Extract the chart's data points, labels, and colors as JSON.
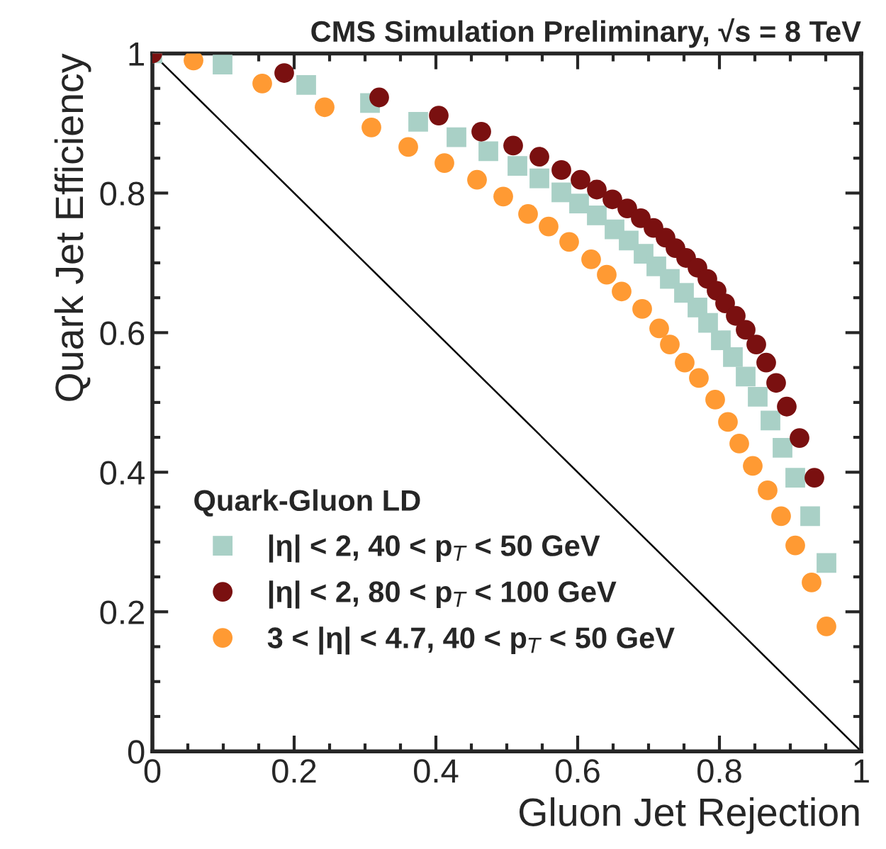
{
  "chart_data": {
    "type": "scatter",
    "title": "CMS Simulation Preliminary, √s = 8 TeV",
    "xlabel": "Gluon Jet Rejection",
    "ylabel": "Quark Jet Efficiency",
    "legend_title": "Quark-Gluon LD",
    "legend": "bottom left",
    "grid": false,
    "xlim": [
      0,
      1
    ],
    "ylim": [
      0,
      1
    ],
    "xticks": [
      0,
      0.2,
      0.4,
      0.6,
      0.8,
      1
    ],
    "yticks": [
      0,
      0.2,
      0.4,
      0.6,
      0.8,
      1
    ],
    "series": [
      {
        "name": "|η| < 2, 40 < p$_{T}$ < 50 GeV",
        "color": "#a9d0c6",
        "marker": "square",
        "x": [
          0,
          0.099,
          0.217,
          0.307,
          0.375,
          0.429,
          0.474,
          0.515,
          0.546,
          0.577,
          0.602,
          0.627,
          0.652,
          0.672,
          0.693,
          0.711,
          0.73,
          0.75,
          0.769,
          0.784,
          0.802,
          0.819,
          0.837,
          0.854,
          0.872,
          0.889,
          0.907,
          0.928,
          0.951
        ],
        "values": [
          1,
          0.984,
          0.955,
          0.929,
          0.902,
          0.88,
          0.86,
          0.839,
          0.821,
          0.801,
          0.785,
          0.768,
          0.748,
          0.732,
          0.713,
          0.695,
          0.677,
          0.657,
          0.636,
          0.614,
          0.589,
          0.565,
          0.537,
          0.508,
          0.474,
          0.435,
          0.392,
          0.337,
          0.27
        ]
      },
      {
        "name": "|η| < 2, 80 < p$_{T}$ < 100 GeV",
        "color": "#7a1010",
        "marker": "circle",
        "x": [
          0,
          0.186,
          0.32,
          0.404,
          0.464,
          0.509,
          0.546,
          0.577,
          0.604,
          0.627,
          0.649,
          0.67,
          0.689,
          0.707,
          0.724,
          0.738,
          0.753,
          0.769,
          0.783,
          0.796,
          0.808,
          0.823,
          0.837,
          0.852,
          0.866,
          0.88,
          0.895,
          0.913,
          0.934
        ],
        "values": [
          1,
          0.972,
          0.937,
          0.911,
          0.888,
          0.868,
          0.852,
          0.833,
          0.819,
          0.805,
          0.791,
          0.778,
          0.764,
          0.75,
          0.736,
          0.721,
          0.707,
          0.693,
          0.677,
          0.66,
          0.642,
          0.624,
          0.604,
          0.583,
          0.557,
          0.528,
          0.494,
          0.449,
          0.392
        ]
      },
      {
        "name": "3 < |η| < 4.7, 40 < p$_{T}$ < 50 GeV",
        "color": "#ff9a33",
        "marker": "circle",
        "x": [
          0.058,
          0.155,
          0.243,
          0.309,
          0.361,
          0.412,
          0.458,
          0.495,
          0.53,
          0.559,
          0.588,
          0.619,
          0.641,
          0.662,
          0.691,
          0.715,
          0.73,
          0.751,
          0.771,
          0.794,
          0.812,
          0.828,
          0.847,
          0.868,
          0.887,
          0.907,
          0.93,
          0.951
        ],
        "values": [
          0.99,
          0.957,
          0.923,
          0.894,
          0.866,
          0.843,
          0.819,
          0.795,
          0.77,
          0.752,
          0.73,
          0.705,
          0.683,
          0.659,
          0.634,
          0.606,
          0.583,
          0.557,
          0.535,
          0.504,
          0.472,
          0.441,
          0.409,
          0.374,
          0.337,
          0.295,
          0.242,
          0.179
        ]
      },
      {
        "type": "line",
        "color": "#000000",
        "line_style": "solid",
        "x": [
          0,
          1
        ],
        "values": [
          1,
          0
        ]
      }
    ]
  }
}
